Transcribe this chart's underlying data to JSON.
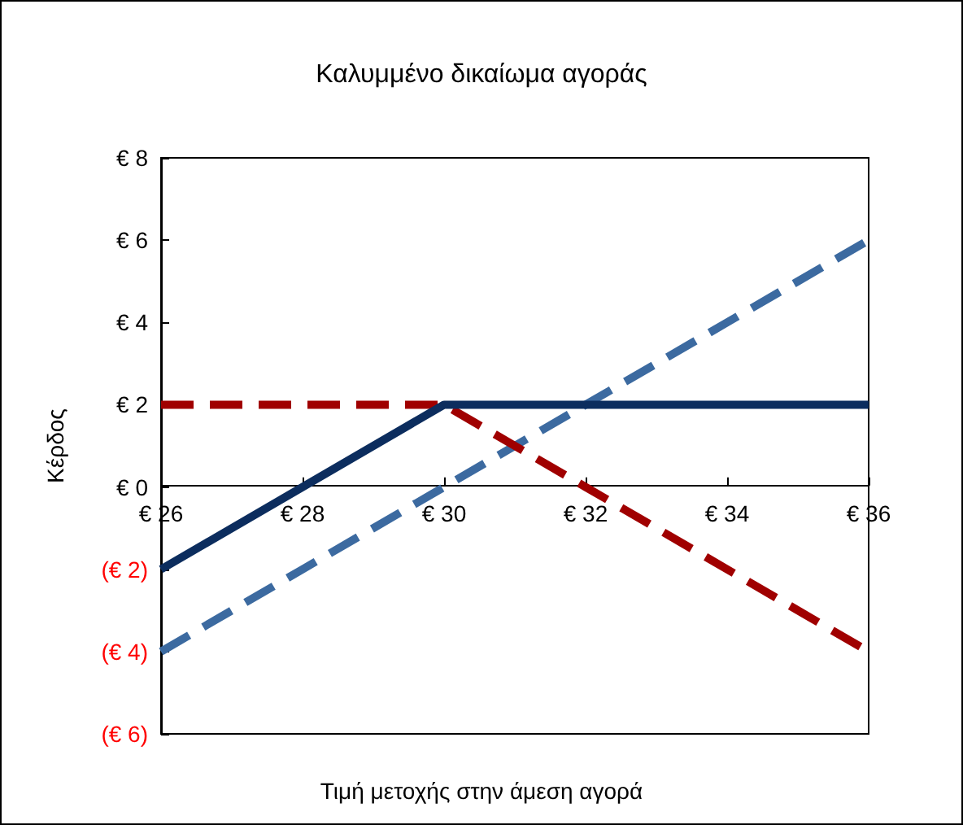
{
  "chart_data": {
    "type": "line",
    "title": "Καλυμμένο δικαίωμα αγοράς",
    "xlabel": "Τιμή μετοχής στην άμεση αγορά",
    "ylabel": "Κέρδος",
    "x": [
      26,
      28,
      30,
      32,
      34,
      36
    ],
    "series": [
      {
        "color": "#3c6aa0",
        "line_style": "dashed",
        "values": [
          -4,
          -2,
          0,
          2,
          4,
          6
        ]
      },
      {
        "color": "#a00000",
        "line_style": "dashed",
        "values": [
          2,
          2,
          2,
          0,
          -2,
          -4
        ]
      },
      {
        "color": "#0c2d5e",
        "line_style": "solid",
        "values": [
          -2,
          0,
          2,
          2,
          2,
          2
        ]
      }
    ],
    "xlim": [
      26,
      36
    ],
    "xticks": [
      {
        "value": 26,
        "label": "€ 26"
      },
      {
        "value": 28,
        "label": "€ 28"
      },
      {
        "value": 30,
        "label": "€ 30"
      },
      {
        "value": 32,
        "label": "€ 32"
      },
      {
        "value": 34,
        "label": "€ 34"
      },
      {
        "value": 36,
        "label": "€ 36"
      }
    ],
    "ylim": [
      -6,
      8
    ],
    "yticks": [
      {
        "value": -6,
        "label": "(€ 6)"
      },
      {
        "value": -4,
        "label": "(€ 4)"
      },
      {
        "value": -2,
        "label": "(€ 2)"
      },
      {
        "value": 0,
        "label": "€ 0"
      },
      {
        "value": 2,
        "label": "€ 2"
      },
      {
        "value": 4,
        "label": "€ 4"
      },
      {
        "value": 6,
        "label": "€ 6"
      },
      {
        "value": 8,
        "label": "€ 8"
      }
    ],
    "grid": false,
    "marker": "none"
  }
}
